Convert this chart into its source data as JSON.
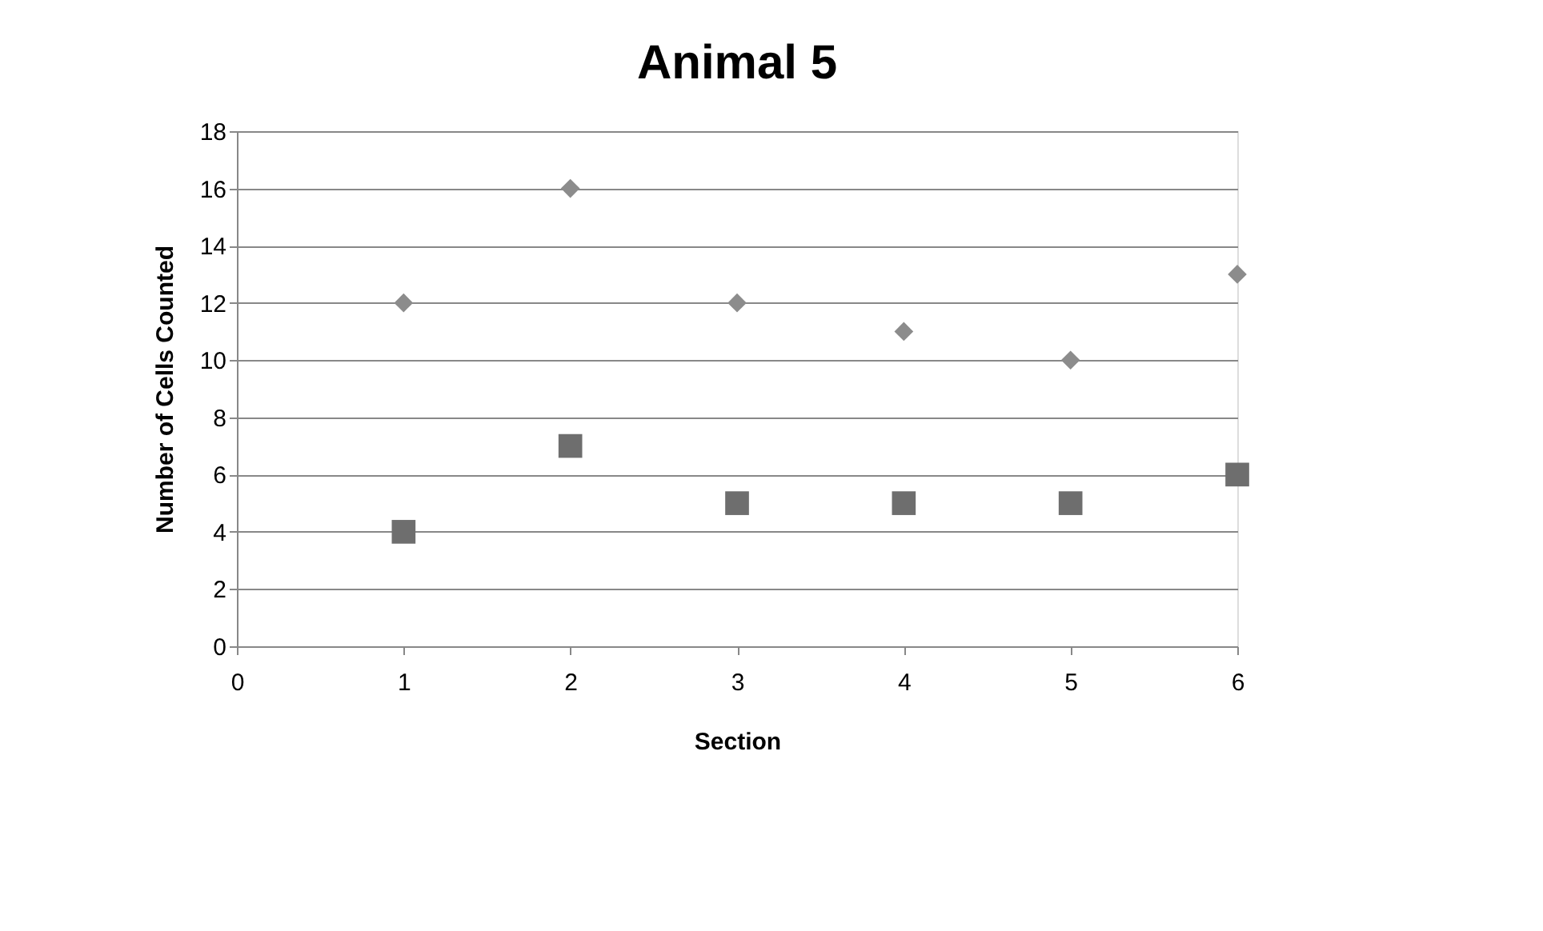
{
  "chart_data": {
    "type": "scatter",
    "title": "Animal 5",
    "xlabel": "Section",
    "ylabel": "Number of Cells Counted",
    "x": [
      1,
      2,
      3,
      4,
      5,
      6
    ],
    "series": [
      {
        "color": "#8c8c8c",
        "marker": "diamond",
        "values": [
          12,
          16,
          12,
          11,
          10,
          13
        ]
      },
      {
        "color": "#6e6e6e",
        "marker": "square",
        "values": [
          4,
          7,
          5,
          5,
          5,
          6
        ]
      }
    ],
    "xlim": [
      0,
      6
    ],
    "xticks": [
      0,
      1,
      2,
      3,
      4,
      5,
      6
    ],
    "ylim": [
      0,
      18
    ],
    "yticks": [
      0,
      2,
      4,
      6,
      8,
      10,
      12,
      14,
      16,
      18
    ],
    "grid": "y",
    "legend": false
  }
}
